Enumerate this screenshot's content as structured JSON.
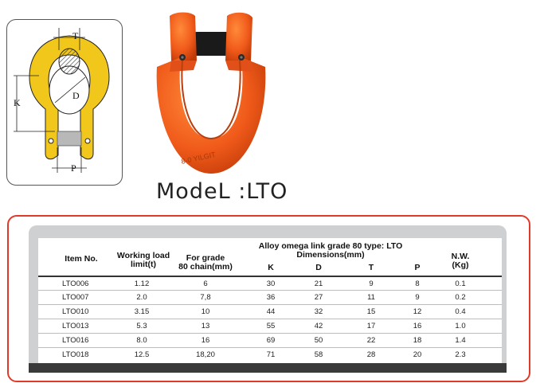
{
  "diagram": {
    "label_T": "T",
    "label_K": "K",
    "label_D": "D",
    "label_P": "P"
  },
  "model_label": "ModeL :LTO",
  "photo": {
    "casting_text": "8-0 YILGIT"
  },
  "table": {
    "title_line1": "Alloy omega link grade 80 type: LTO",
    "title_line2": "Dimensions(mm)",
    "headers": {
      "item": "Item No.",
      "wll_line1": "Working load",
      "wll_line2": "limit(t)",
      "grade_line1": "For grade",
      "grade_line2": "80 chain(mm)",
      "k": "K",
      "d": "D",
      "t": "T",
      "p": "P",
      "nw_line1": "N.W.",
      "nw_line2": "(Kg)"
    },
    "rows": [
      {
        "item": "LTO006",
        "wll": "1.12",
        "grade": "6",
        "k": "30",
        "d": "21",
        "t": "9",
        "p": "8",
        "nw": "0.1"
      },
      {
        "item": "LTO007",
        "wll": "2.0",
        "grade": "7,8",
        "k": "36",
        "d": "27",
        "t": "11",
        "p": "9",
        "nw": "0.2"
      },
      {
        "item": "LTO010",
        "wll": "3.15",
        "grade": "10",
        "k": "44",
        "d": "32",
        "t": "15",
        "p": "12",
        "nw": "0.4"
      },
      {
        "item": "LTO013",
        "wll": "5.3",
        "grade": "13",
        "k": "55",
        "d": "42",
        "t": "17",
        "p": "16",
        "nw": "1.0"
      },
      {
        "item": "LTO016",
        "wll": "8.0",
        "grade": "16",
        "k": "69",
        "d": "50",
        "t": "22",
        "p": "18",
        "nw": "1.4"
      },
      {
        "item": "LTO018",
        "wll": "12.5",
        "grade": "18,20",
        "k": "71",
        "d": "58",
        "t": "28",
        "p": "20",
        "nw": "2.3"
      }
    ]
  },
  "colors": {
    "accent_red": "#e03a2b",
    "shackle_orange": "#f05a1a",
    "diagram_yellow": "#f2c71c"
  }
}
